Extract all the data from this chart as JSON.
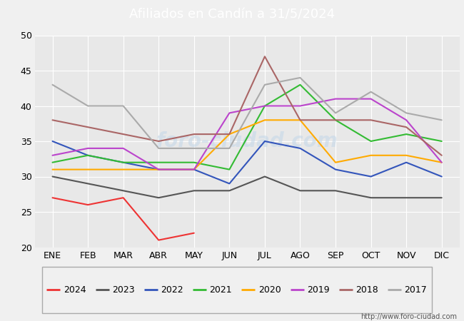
{
  "title": "Afiliados en Candín a 31/5/2024",
  "header_bg": "#4da6d9",
  "months": [
    "ENE",
    "FEB",
    "MAR",
    "ABR",
    "MAY",
    "JUN",
    "JUL",
    "AGO",
    "SEP",
    "OCT",
    "NOV",
    "DIC"
  ],
  "ylim": [
    20,
    50
  ],
  "yticks": [
    20,
    25,
    30,
    35,
    40,
    45,
    50
  ],
  "url": "http://www.foro-ciudad.com",
  "series": [
    {
      "label": "2024",
      "color": "#ee3333",
      "data": [
        27,
        26,
        27,
        21,
        22,
        null,
        null,
        null,
        null,
        null,
        null,
        null
      ]
    },
    {
      "label": "2023",
      "color": "#555555",
      "data": [
        30,
        29,
        28,
        27,
        28,
        28,
        30,
        28,
        28,
        27,
        27,
        27
      ]
    },
    {
      "label": "2022",
      "color": "#3355bb",
      "data": [
        35,
        33,
        32,
        31,
        31,
        29,
        35,
        34,
        31,
        30,
        32,
        30
      ]
    },
    {
      "label": "2021",
      "color": "#33bb33",
      "data": [
        32,
        33,
        32,
        32,
        32,
        31,
        40,
        43,
        38,
        35,
        36,
        35
      ]
    },
    {
      "label": "2020",
      "color": "#ffaa00",
      "data": [
        31,
        31,
        31,
        31,
        31,
        36,
        38,
        38,
        32,
        33,
        33,
        32
      ]
    },
    {
      "label": "2019",
      "color": "#bb44cc",
      "data": [
        33,
        34,
        34,
        31,
        31,
        39,
        40,
        40,
        41,
        41,
        38,
        32
      ]
    },
    {
      "label": "2018",
      "color": "#aa6666",
      "data": [
        38,
        37,
        36,
        35,
        36,
        36,
        47,
        38,
        38,
        38,
        37,
        33
      ]
    },
    {
      "label": "2017",
      "color": "#aaaaaa",
      "data": [
        43,
        40,
        40,
        34,
        34,
        34,
        43,
        44,
        39,
        42,
        39,
        38
      ]
    }
  ],
  "plot_bg": "#e8e8e8",
  "grid_color": "#ffffff",
  "legend_bg": "#f0f0f0",
  "legend_edge": "#aaaaaa",
  "watermark_color": "#c5d8e8",
  "watermark_alpha": 0.6
}
